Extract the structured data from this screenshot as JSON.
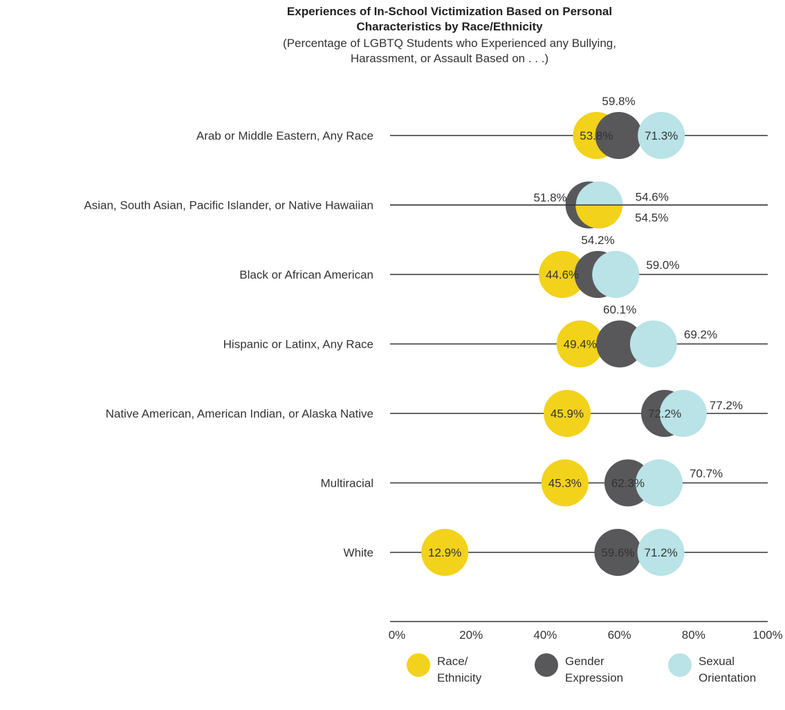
{
  "chart_data": {
    "type": "dot",
    "title": "Experiences of In-School Victimization Based on Personal Characteristics by Race/Ethnicity",
    "subtitle": "(Percentage of LGBTQ Students who Experienced any Bullying, Harassment, or Assault Based on . . .)",
    "categories": [
      "Arab or Middle Eastern, Any Race",
      "Asian, South Asian, Pacific Islander, or Native Hawaiian",
      "Black or African American",
      "Hispanic or Latinx, Any Race",
      "Native American, American Indian, or Alaska Native",
      "Multiracial",
      "White"
    ],
    "series": [
      {
        "name": "Race/ Ethnicity",
        "color": "#F2D21A",
        "values": [
          53.8,
          54.5,
          44.6,
          49.4,
          45.9,
          45.3,
          12.9
        ]
      },
      {
        "name": "Gender Expression",
        "color": "#58585A",
        "values": [
          59.8,
          51.8,
          54.2,
          60.1,
          72.2,
          62.3,
          59.6
        ]
      },
      {
        "name": "Sexual Orientation",
        "color": "#B9E3E6",
        "values": [
          71.3,
          54.6,
          59.0,
          69.2,
          77.2,
          70.7,
          71.2
        ]
      }
    ],
    "value_labels": [
      [
        "53.8%",
        "59.8%",
        "71.3%"
      ],
      [
        "54.5%",
        "51.8%",
        "54.6%"
      ],
      [
        "44.6%",
        "54.2%",
        "59.0%"
      ],
      [
        "49.4%",
        "60.1%",
        "69.2%"
      ],
      [
        "45.9%",
        "72.2%",
        "77.2%"
      ],
      [
        "45.3%",
        "62.3%",
        "70.7%"
      ],
      [
        "12.9%",
        "59.6%",
        "71.2%"
      ]
    ],
    "xlim": [
      0,
      100
    ],
    "xticks": [
      "0%",
      "20%",
      "40%",
      "60%",
      "80%",
      "100%"
    ],
    "legend_position": "bottom"
  },
  "legend": {
    "race_label": "Race/\nEthnicity",
    "gender_label": "Gender\nExpression",
    "sexual_label": "Sexual\nOrientation"
  }
}
